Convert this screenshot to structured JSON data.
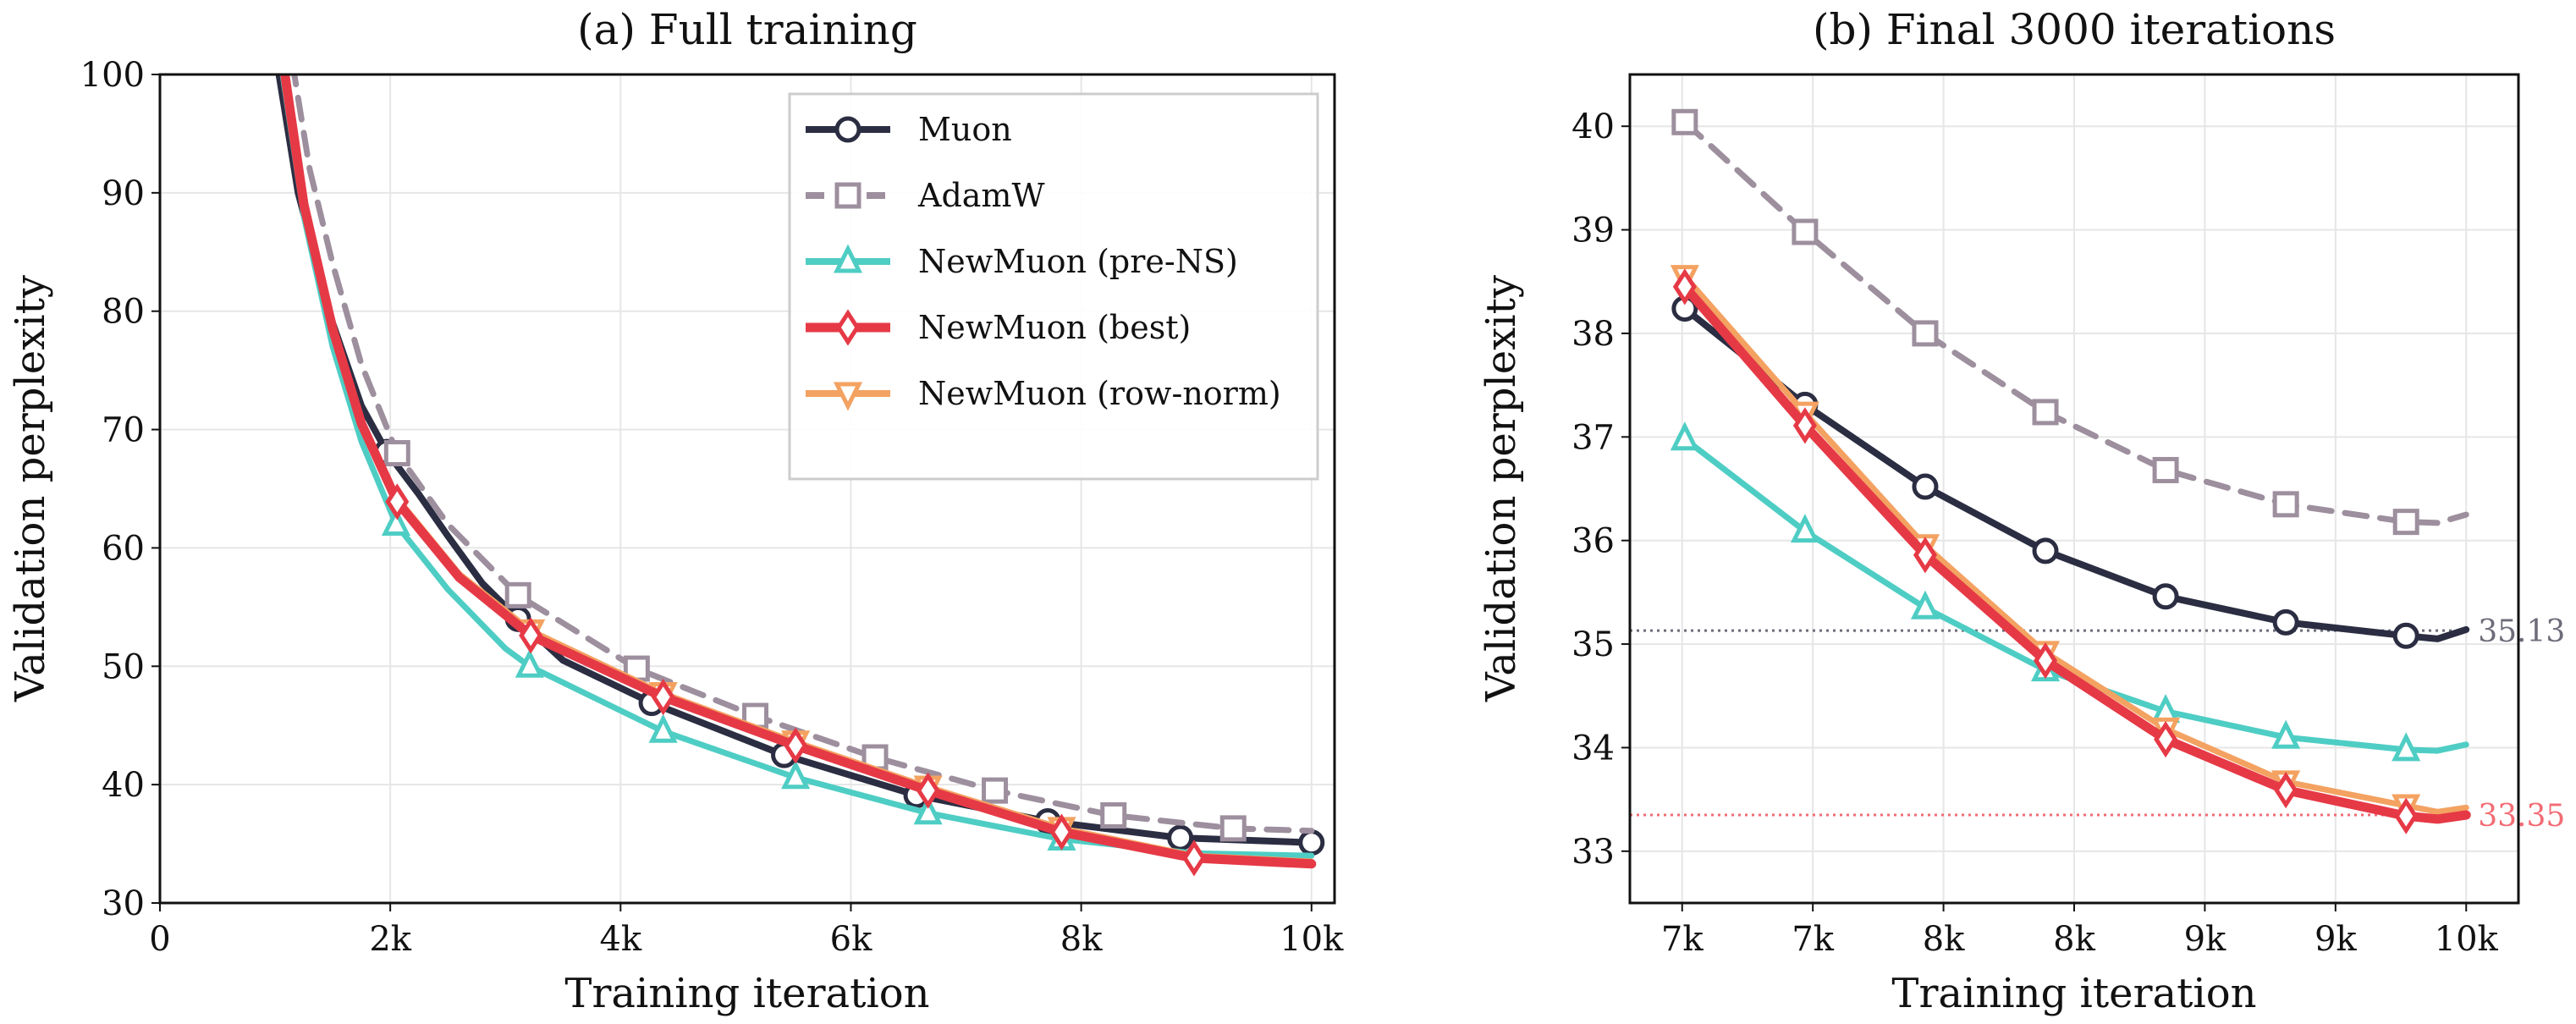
{
  "chart_data": [
    {
      "type": "line",
      "title": "(a) Full training",
      "xlabel": "Training iteration",
      "ylabel": "Validation perplexity",
      "xlim": [
        0,
        10200
      ],
      "ylim": [
        30,
        100
      ],
      "xticks": [
        0,
        2000,
        4000,
        6000,
        8000,
        10000
      ],
      "xtick_labels": [
        "0",
        "2k",
        "4k",
        "6k",
        "8k",
        "10k"
      ],
      "yticks": [
        30,
        40,
        50,
        60,
        70,
        80,
        90,
        100
      ],
      "ytick_labels": [
        "30",
        "40",
        "50",
        "60",
        "70",
        "80",
        "90",
        "100"
      ],
      "grid": true,
      "legend_position": "top-right",
      "series": [
        {
          "name": "Muon",
          "color": "#2b2d42",
          "dash": false,
          "marker": "circle",
          "x": [
            1000,
            1200,
            1500,
            1750,
            1970,
            2250,
            2500,
            2800,
            3110,
            3500,
            4270,
            5420,
            6570,
            7710,
            8860,
            10000
          ],
          "y": [
            102,
            90,
            79,
            72,
            68.1,
            64.5,
            61,
            57,
            54.0,
            50.5,
            46.9,
            42.5,
            39.1,
            36.9,
            35.5,
            35.1
          ],
          "marker_x": [
            1970,
            3110,
            4270,
            5420,
            6570,
            7710,
            8860,
            10000
          ],
          "marker_y": [
            68.1,
            54.0,
            46.9,
            42.5,
            39.1,
            36.9,
            35.5,
            35.1
          ]
        },
        {
          "name": "AdamW",
          "color": "#9d8f9e",
          "dash": true,
          "marker": "square",
          "x": [
            1150,
            1300,
            1500,
            1750,
            2060,
            2500,
            3110,
            4140,
            5170,
            6210,
            7250,
            8280,
            9320,
            10000
          ],
          "y": [
            101,
            92,
            84,
            75.5,
            68.0,
            62,
            56.0,
            49.8,
            45.8,
            42.3,
            39.5,
            37.4,
            36.3,
            36.1
          ],
          "marker_x": [
            2060,
            3110,
            4140,
            5170,
            6210,
            7250,
            8280,
            9320
          ],
          "marker_y": [
            68.0,
            56.0,
            49.8,
            45.8,
            42.3,
            39.5,
            37.4,
            36.3
          ]
        },
        {
          "name": "NewMuon (pre-NS)",
          "color": "#4ecdc4",
          "dash": false,
          "marker": "triangle-up",
          "x": [
            1050,
            1250,
            1500,
            1750,
            2050,
            2500,
            3000,
            3210,
            4370,
            5520,
            6670,
            7830,
            8980,
            10000
          ],
          "y": [
            101,
            88,
            77,
            69,
            62.0,
            56.5,
            51.5,
            50.0,
            44.5,
            40.6,
            37.6,
            35.4,
            34.2,
            34.0
          ],
          "marker_x": [
            2050,
            3210,
            4370,
            5520,
            6670,
            7830
          ],
          "marker_y": [
            62.0,
            50.0,
            44.5,
            40.6,
            37.6,
            35.4
          ]
        },
        {
          "name": "NewMuon (row-norm)",
          "color": "#f4a261",
          "dash": false,
          "marker": "triangle-down",
          "x": [
            1070,
            1250,
            1500,
            1750,
            2060,
            2600,
            3220,
            4370,
            5520,
            6670,
            7830,
            8980,
            10000
          ],
          "y": [
            101,
            89.2,
            78.8,
            70.8,
            64.2,
            57.8,
            53.0,
            47.7,
            43.6,
            39.8,
            36.3,
            34.0,
            33.5
          ],
          "marker_x": [
            3220,
            4370,
            5520,
            6670,
            7830
          ],
          "marker_y": [
            53.0,
            47.7,
            43.6,
            39.8,
            36.3
          ]
        },
        {
          "name": "NewMuon (best)",
          "color": "#e63946",
          "dash": false,
          "marker": "diamond",
          "x": [
            1070,
            1250,
            1500,
            1750,
            2060,
            2600,
            3220,
            4370,
            5520,
            6670,
            7830,
            8980,
            10000
          ],
          "y": [
            101,
            89,
            78.5,
            70.5,
            63.9,
            57.5,
            52.6,
            47.4,
            43.3,
            39.5,
            36.0,
            33.8,
            33.3
          ],
          "marker_x": [
            2060,
            3220,
            4370,
            5520,
            6670,
            7830,
            8980
          ],
          "marker_y": [
            63.9,
            52.6,
            47.4,
            43.3,
            39.5,
            36.0,
            33.8
          ]
        }
      ],
      "legend_order": [
        "Muon",
        "AdamW",
        "NewMuon (pre-NS)",
        "NewMuon (best)",
        "NewMuon (row-norm)"
      ]
    },
    {
      "type": "line",
      "title": "(b) Final 3000 iterations",
      "xlabel": "Training iteration",
      "ylabel": "Validation perplexity",
      "xlim": [
        6800,
        10200
      ],
      "ylim": [
        32.5,
        40.5
      ],
      "xticks": [
        7000,
        7500,
        8000,
        8500,
        9000,
        9500,
        10000
      ],
      "xtick_labels": [
        "7k",
        "7k",
        "8k",
        "8k",
        "9k",
        "9k",
        "10k"
      ],
      "yticks": [
        33,
        34,
        35,
        36,
        37,
        38,
        39,
        40
      ],
      "ytick_labels": [
        "33",
        "34",
        "35",
        "36",
        "37",
        "38",
        "39",
        "40"
      ],
      "grid": true,
      "reference_lines": [
        {
          "y": 35.13,
          "label": "35.13",
          "color": "#6c6c7a"
        },
        {
          "y": 33.35,
          "label": "33.35",
          "color": "#f26b74"
        }
      ],
      "series": [
        {
          "name": "AdamW",
          "color": "#9d8f9e",
          "dash": true,
          "marker": "square",
          "x": [
            7010,
            7470,
            7930,
            8390,
            8850,
            9310,
            9770,
            9890,
            10000
          ],
          "y": [
            40.04,
            38.98,
            38.0,
            37.24,
            36.68,
            36.35,
            36.18,
            36.17,
            36.25
          ],
          "marker_count": 7
        },
        {
          "name": "Muon",
          "color": "#2b2d42",
          "dash": false,
          "marker": "circle",
          "x": [
            7010,
            7470,
            7930,
            8390,
            8850,
            9310,
            9770,
            9890,
            10000
          ],
          "y": [
            38.24,
            37.31,
            36.52,
            35.9,
            35.46,
            35.21,
            35.08,
            35.05,
            35.14
          ],
          "marker_count": 7
        },
        {
          "name": "NewMuon (pre-NS)",
          "color": "#4ecdc4",
          "dash": false,
          "marker": "triangle-up",
          "x": [
            7010,
            7470,
            7930,
            8390,
            8850,
            9310,
            9770,
            9890,
            10000
          ],
          "y": [
            36.98,
            36.09,
            35.35,
            34.75,
            34.35,
            34.1,
            33.98,
            33.97,
            34.03
          ],
          "marker_count": 7
        },
        {
          "name": "NewMuon (row-norm)",
          "color": "#f4a261",
          "dash": false,
          "marker": "triangle-down",
          "x": [
            7010,
            7470,
            7930,
            8390,
            8850,
            9310,
            9770,
            9890,
            10000
          ],
          "y": [
            38.55,
            37.23,
            35.95,
            34.92,
            34.18,
            33.67,
            33.44,
            33.38,
            33.42
          ],
          "marker_count": 7
        },
        {
          "name": "NewMuon (best)",
          "color": "#e63946",
          "dash": false,
          "marker": "diamond",
          "x": [
            7010,
            7470,
            7930,
            8390,
            8850,
            9310,
            9770,
            9890,
            10000
          ],
          "y": [
            38.45,
            37.11,
            35.86,
            34.84,
            34.08,
            33.59,
            33.34,
            33.31,
            33.35
          ],
          "marker_count": 7
        }
      ]
    }
  ]
}
